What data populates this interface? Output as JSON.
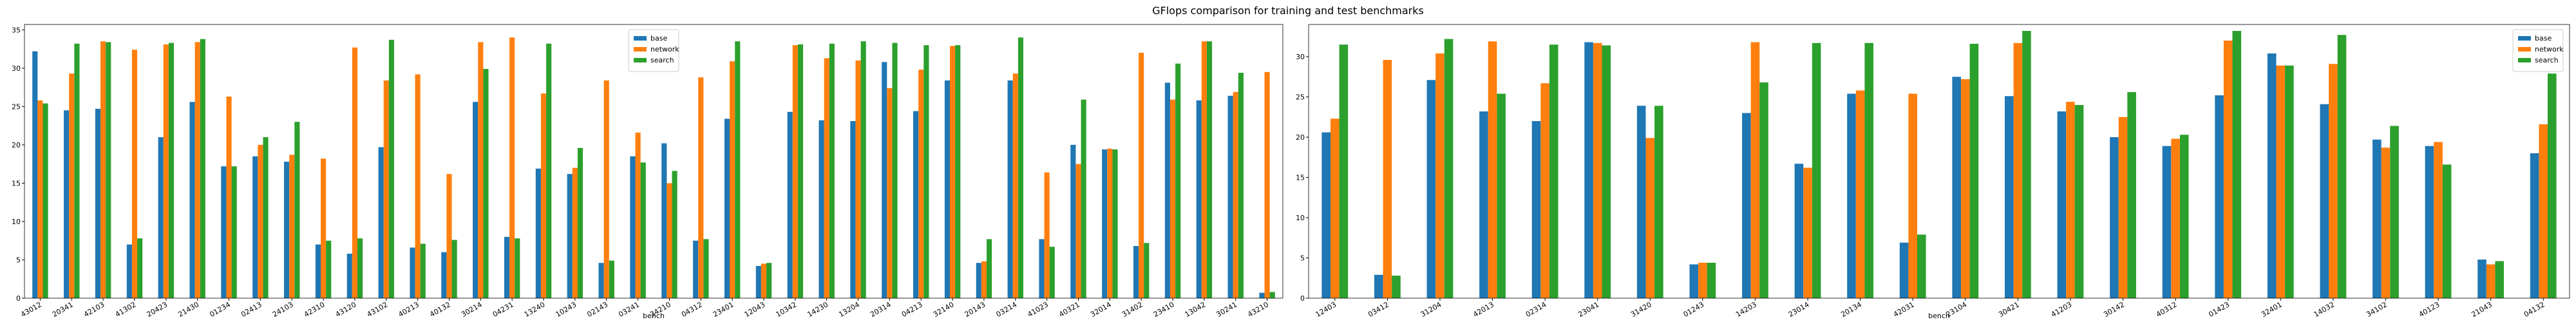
{
  "title": "GFlops comparison for training and test benchmarks",
  "chart_data": [
    {
      "type": "bar",
      "xlabel": "bench",
      "legend": "upper center",
      "categories": [
        "43012",
        "20341",
        "42103",
        "41302",
        "20423",
        "21430",
        "01234",
        "02413",
        "24103",
        "42310",
        "43120",
        "43102",
        "40213",
        "40132",
        "30214",
        "04231",
        "13240",
        "10243",
        "02143",
        "03241",
        "34210",
        "04312",
        "23401",
        "12043",
        "10342",
        "14230",
        "13204",
        "20314",
        "04213",
        "32140",
        "20143",
        "03214",
        "41023",
        "40321",
        "32014",
        "31402",
        "23410",
        "13042",
        "30241",
        "43210"
      ],
      "series": [
        {
          "name": "base",
          "color": "#1f77b4",
          "values": [
            32.2,
            24.5,
            24.7,
            7.0,
            21.0,
            25.6,
            17.2,
            18.5,
            17.8,
            7.0,
            5.8,
            19.7,
            6.6,
            6.0,
            25.6,
            8.0,
            16.9,
            16.2,
            4.6,
            18.5,
            20.2,
            7.5,
            23.4,
            4.2,
            24.3,
            23.2,
            23.1,
            30.8,
            24.4,
            28.4,
            4.6,
            28.4,
            7.7,
            20.0,
            19.4,
            6.8,
            28.1,
            25.8,
            26.4,
            0.7
          ]
        },
        {
          "name": "network",
          "color": "#ff7f0e",
          "values": [
            25.8,
            29.3,
            33.5,
            32.4,
            33.1,
            33.4,
            26.3,
            20.0,
            18.7,
            18.2,
            32.7,
            28.4,
            29.2,
            16.2,
            33.4,
            34.0,
            26.7,
            17.0,
            28.4,
            21.6,
            15.0,
            28.8,
            30.9,
            4.5,
            33.0,
            31.3,
            31.0,
            27.4,
            29.8,
            32.9,
            4.8,
            29.3,
            16.4,
            17.5,
            19.5,
            32.0,
            25.9,
            33.5,
            26.9,
            29.5
          ]
        },
        {
          "name": "search",
          "color": "#2ca02c",
          "values": [
            25.4,
            33.2,
            33.4,
            7.8,
            33.3,
            33.8,
            17.2,
            21.0,
            23.0,
            7.5,
            7.8,
            33.7,
            7.1,
            7.6,
            29.9,
            7.8,
            33.2,
            19.6,
            4.9,
            17.7,
            16.6,
            7.7,
            33.5,
            4.6,
            33.1,
            33.2,
            33.5,
            33.3,
            33.0,
            33.0,
            7.7,
            34.0,
            6.7,
            25.9,
            19.4,
            7.2,
            30.6,
            33.5,
            29.4,
            0.8
          ]
        }
      ],
      "ylim": [
        0,
        35.7
      ],
      "yticks": [
        0,
        5,
        10,
        15,
        20,
        25,
        30,
        35
      ]
    },
    {
      "type": "bar",
      "xlabel": "bench",
      "legend": "upper right",
      "categories": [
        "12403",
        "03412",
        "31204",
        "42013",
        "02314",
        "23041",
        "31420",
        "01243",
        "14203",
        "23014",
        "20134",
        "42031",
        "23104",
        "30421",
        "41203",
        "30142",
        "40312",
        "01423",
        "32401",
        "14032",
        "34102",
        "40123",
        "21043",
        "04132"
      ],
      "series": [
        {
          "name": "base",
          "color": "#1f77b4",
          "values": [
            20.6,
            2.9,
            27.1,
            23.2,
            22.0,
            31.8,
            23.9,
            4.2,
            23.0,
            16.7,
            25.4,
            6.9,
            27.5,
            25.1,
            23.2,
            20.0,
            18.9,
            25.2,
            30.4,
            24.1,
            19.7,
            18.9,
            4.8,
            18.0
          ]
        },
        {
          "name": "network",
          "color": "#ff7f0e",
          "values": [
            22.3,
            29.6,
            30.4,
            31.9,
            26.7,
            31.7,
            19.9,
            4.4,
            31.8,
            16.2,
            25.8,
            25.4,
            27.2,
            31.7,
            24.4,
            22.5,
            19.8,
            32.0,
            28.9,
            29.1,
            18.7,
            19.4,
            4.2,
            21.6
          ]
        },
        {
          "name": "search",
          "color": "#2ca02c",
          "values": [
            31.5,
            2.8,
            32.2,
            25.4,
            31.5,
            31.4,
            23.9,
            4.4,
            26.8,
            31.7,
            31.7,
            7.9,
            31.6,
            33.2,
            24.0,
            25.6,
            20.3,
            33.2,
            28.9,
            32.7,
            21.4,
            16.6,
            4.6,
            27.9
          ]
        }
      ],
      "ylim": [
        0,
        34.0
      ],
      "yticks": [
        0,
        5,
        10,
        15,
        20,
        25,
        30
      ]
    }
  ]
}
